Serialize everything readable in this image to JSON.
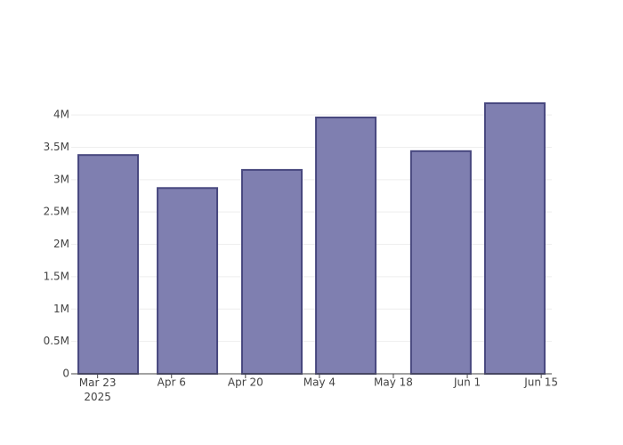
{
  "chart_data": {
    "type": "bar",
    "x": [
      "2025-03-25",
      "2025-04-09",
      "2025-04-25",
      "2025-05-09",
      "2025-05-27",
      "2025-06-10"
    ],
    "values": [
      3380000,
      2870000,
      3150000,
      3960000,
      3440000,
      4180000
    ],
    "color": "#7f7fb0",
    "edge_color": "#48487f",
    "xlim": [
      "2025-03-18",
      "2025-06-17"
    ],
    "xticks": [
      {
        "value": "2025-03-23",
        "label": "Mar 23\n2025"
      },
      {
        "value": "2025-04-06",
        "label": "Apr 6"
      },
      {
        "value": "2025-04-20",
        "label": "Apr 20"
      },
      {
        "value": "2025-05-04",
        "label": "May 4"
      },
      {
        "value": "2025-05-18",
        "label": "May 18"
      },
      {
        "value": "2025-06-01",
        "label": "Jun 1"
      },
      {
        "value": "2025-06-15",
        "label": "Jun 15"
      }
    ],
    "ylim": [
      0,
      4400000
    ],
    "yticks": [
      0,
      {
        "value": 500000,
        "label": "0.5M"
      },
      {
        "value": 1000000,
        "label": "1M"
      },
      {
        "value": 1500000,
        "label": "1.5M"
      },
      {
        "value": 2000000,
        "label": "2M"
      },
      {
        "value": 2500000,
        "label": "2.5M"
      },
      {
        "value": 3000000,
        "label": "3M"
      },
      {
        "value": 3500000,
        "label": "3.5M"
      },
      {
        "value": 4000000,
        "label": "4M"
      }
    ],
    "grid": true
  }
}
